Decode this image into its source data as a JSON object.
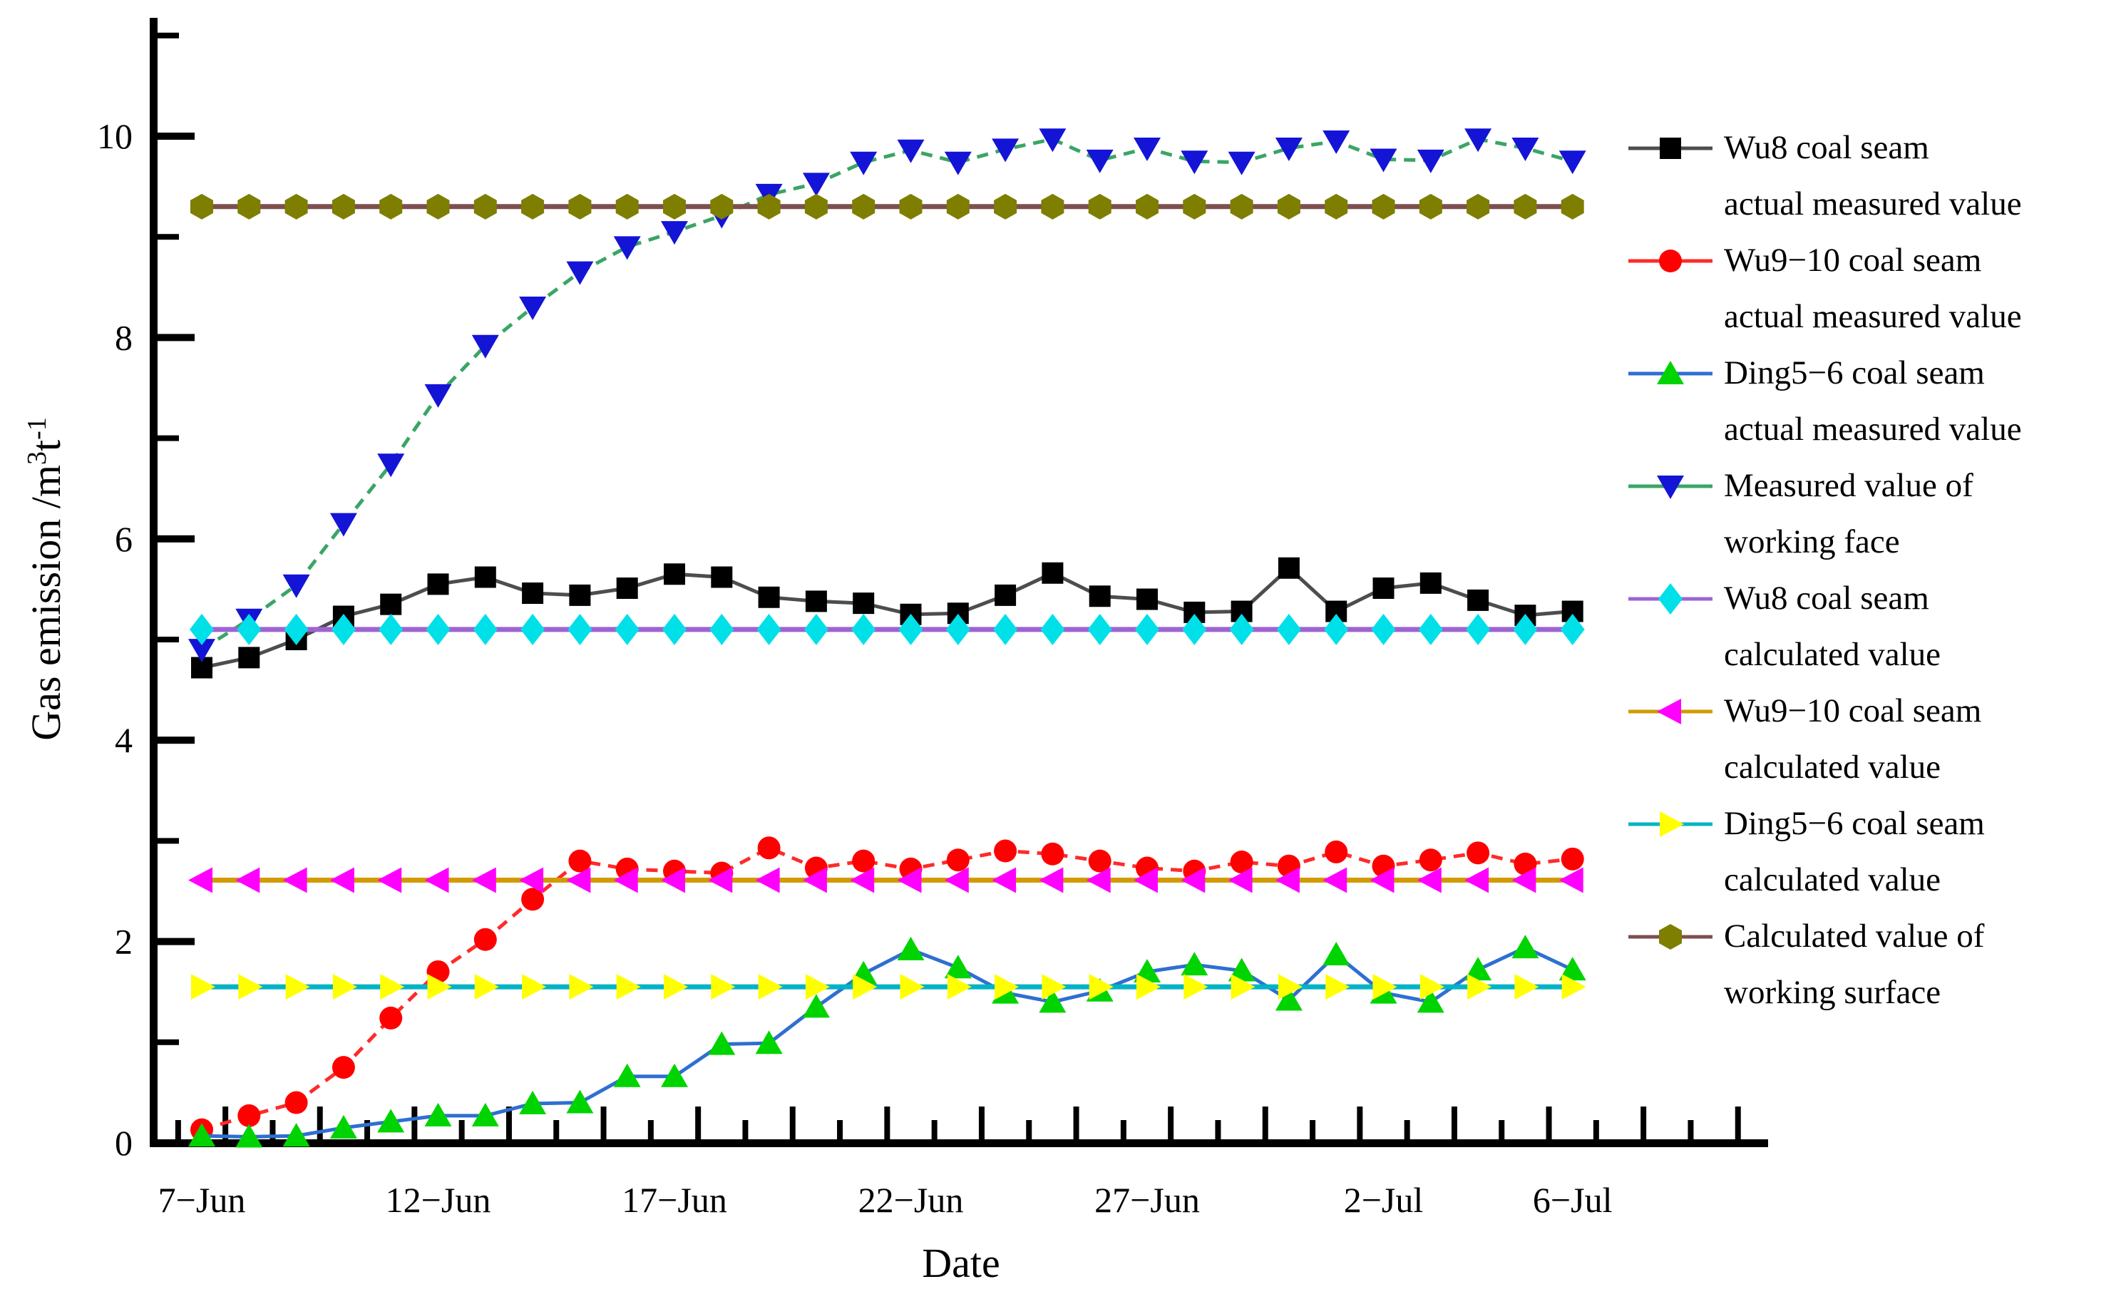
{
  "page": {
    "background": "#ffffff"
  },
  "axes": {
    "xlabel": "Date",
    "ylabel_prefix": "Gas emission /m",
    "ylabel_sup1": "3",
    "ylabel_mid": "t",
    "ylabel_sup2": "-1"
  },
  "chart_data": {
    "type": "line",
    "title": "",
    "xlabel": "Date",
    "ylabel": "Gas emission /m³t⁻¹",
    "n_points": 30,
    "x_start_label": "7−Jun",
    "x_end_label": "6−Jul",
    "x_ticks": [
      {
        "day": 0,
        "label": "7−Jun"
      },
      {
        "day": 5,
        "label": "12−Jun"
      },
      {
        "day": 10,
        "label": "17−Jun"
      },
      {
        "day": 15,
        "label": "22−Jun"
      },
      {
        "day": 20,
        "label": "27−Jun"
      },
      {
        "day": 25,
        "label": "2−Jul"
      },
      {
        "day": 29,
        "label": "6−Jul"
      }
    ],
    "ylim": [
      0,
      11.17
    ],
    "yticks_major": [
      0,
      2,
      4,
      6,
      8,
      10
    ],
    "yticks_minor": [
      1,
      3,
      5,
      7,
      9,
      11
    ],
    "grid": false,
    "legend_position": "right",
    "series": [
      {
        "name": "Wu8 coal seam actual measured value",
        "marker": "square",
        "marker_color": "#000000",
        "line_color": "#4d4d4d",
        "line_dash": "none",
        "line_width": 5,
        "values": [
          4.72,
          4.82,
          5.0,
          5.23,
          5.35,
          5.55,
          5.62,
          5.46,
          5.44,
          5.51,
          5.65,
          5.62,
          5.42,
          5.38,
          5.36,
          5.25,
          5.26,
          5.44,
          5.66,
          5.43,
          5.4,
          5.27,
          5.28,
          5.71,
          5.28,
          5.51,
          5.56,
          5.39,
          5.24,
          5.28
        ]
      },
      {
        "name": "Wu9−10 coal seam actual measured value",
        "marker": "circle",
        "marker_color": "#ff0000",
        "line_color": "#ff2a2a",
        "line_dash": "16 11",
        "line_width": 5,
        "values": [
          0.13,
          0.27,
          0.4,
          0.75,
          1.24,
          1.7,
          2.02,
          2.42,
          2.8,
          2.72,
          2.7,
          2.68,
          2.93,
          2.73,
          2.8,
          2.72,
          2.81,
          2.9,
          2.87,
          2.8,
          2.73,
          2.7,
          2.79,
          2.75,
          2.89,
          2.75,
          2.81,
          2.88,
          2.77,
          2.82
        ]
      },
      {
        "name": "Ding5−6 coal seam actual measured value",
        "marker": "triangle-up",
        "marker_color": "#00d400",
        "line_color": "#2e6fd1",
        "line_dash": "none",
        "line_width": 5,
        "values": [
          0.07,
          0.06,
          0.07,
          0.15,
          0.21,
          0.27,
          0.27,
          0.39,
          0.4,
          0.66,
          0.66,
          0.98,
          0.99,
          1.35,
          1.68,
          1.92,
          1.74,
          1.49,
          1.4,
          1.51,
          1.7,
          1.77,
          1.71,
          1.42,
          1.87,
          1.49,
          1.4,
          1.72,
          1.94,
          1.72
        ]
      },
      {
        "name": "Measured value of working face",
        "marker": "triangle-down",
        "marker_color": "#1414d6",
        "line_color": "#3aa565",
        "line_dash": "16 11",
        "line_width": 5,
        "values": [
          4.9,
          5.2,
          5.54,
          6.15,
          6.74,
          7.43,
          7.92,
          8.3,
          8.65,
          8.9,
          9.05,
          9.21,
          9.42,
          9.53,
          9.74,
          9.86,
          9.74,
          9.87,
          9.97,
          9.76,
          9.88,
          9.75,
          9.74,
          9.88,
          9.95,
          9.77,
          9.76,
          9.97,
          9.88,
          9.75
        ]
      },
      {
        "name": "Wu8 coal seam calculated value",
        "marker": "diamond",
        "marker_color": "#00e0e8",
        "line_color": "#9d63d3",
        "line_dash": "none",
        "line_width": 7,
        "constant": 5.1
      },
      {
        "name": "Wu9−10 coal seam calculated value",
        "marker": "triangle-left",
        "marker_color": "#ff00ff",
        "line_color": "#d19b00",
        "line_dash": "none",
        "line_width": 7,
        "constant": 2.61
      },
      {
        "name": "Ding5−6 coal seam calculated value",
        "marker": "triangle-right",
        "marker_color": "#ffff00",
        "line_color": "#00b4c5",
        "line_dash": "none",
        "line_width": 7,
        "constant": 1.55
      },
      {
        "name": "Calculated value of working surface",
        "marker": "hexagon",
        "marker_color": "#7e7e00",
        "line_color": "#7e4f4f",
        "line_dash": "none",
        "line_width": 7,
        "constant": 9.3
      }
    ]
  },
  "legend": {
    "items": [
      {
        "line1": "Wu8 coal seam",
        "line2": "actual measured value"
      },
      {
        "line1": "Wu9−10 coal seam",
        "line2": "actual measured value"
      },
      {
        "line1": "Ding5−6 coal seam",
        "line2": "actual measured value"
      },
      {
        "line1": "Measured value of",
        "line2": "working face"
      },
      {
        "line1": "Wu8 coal seam",
        "line2": "calculated value"
      },
      {
        "line1": "Wu9−10 coal seam",
        "line2": "calculated value"
      },
      {
        "line1": "Ding5−6 coal seam",
        "line2": "calculated value"
      },
      {
        "line1": "Calculated value of",
        "line2": "working surface"
      }
    ]
  }
}
